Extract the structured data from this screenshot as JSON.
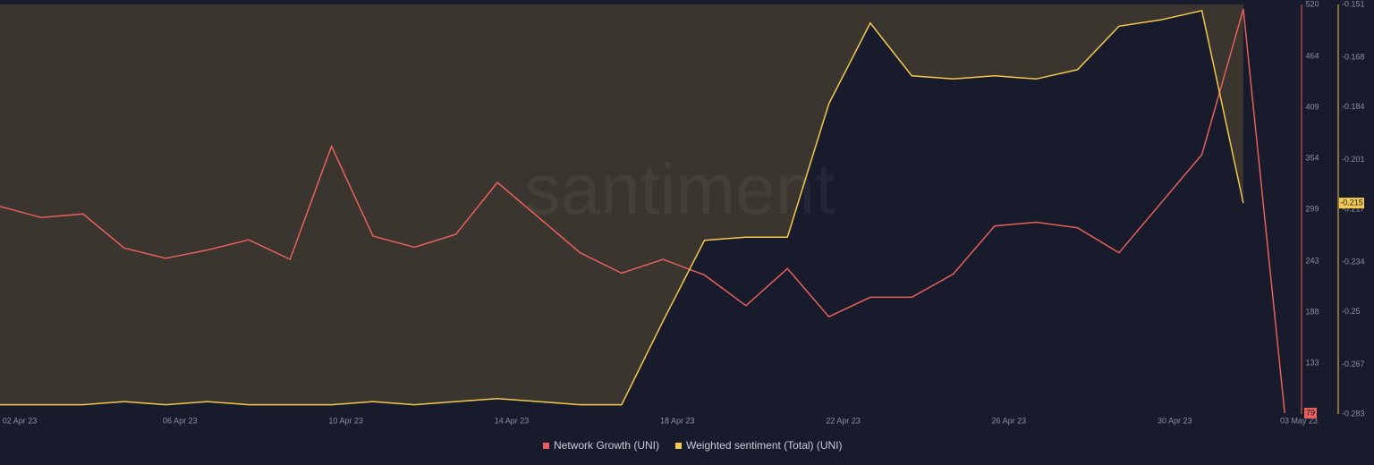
{
  "chart_data": {
    "type": "line",
    "watermark": "santiment",
    "categories": [
      "02 Apr 23",
      null,
      null,
      null,
      "06 Apr 23",
      null,
      null,
      null,
      "10 Apr 23",
      null,
      null,
      null,
      "14 Apr 23",
      null,
      null,
      null,
      "18 Apr 23",
      null,
      null,
      null,
      "22 Apr 23",
      null,
      null,
      null,
      "26 Apr 23",
      null,
      null,
      null,
      "30 Apr 23",
      null,
      null,
      "03 May 23"
    ],
    "series": [
      {
        "name": "Network Growth (UNI)",
        "color": "#e8605a",
        "axis": "y",
        "values": [
          302,
          290,
          294,
          257,
          246,
          255,
          266,
          245,
          367,
          270,
          258,
          272,
          328,
          290,
          252,
          230,
          245,
          228,
          195,
          235,
          183,
          204,
          204,
          229,
          281,
          285,
          279,
          252,
          305,
          358,
          515,
          79
        ]
      },
      {
        "name": "Weighted sentiment (Total) (UNI)",
        "color": "#f2c94c",
        "axis": "y2",
        "values": [
          -0.28,
          -0.28,
          -0.28,
          -0.279,
          -0.28,
          -0.279,
          -0.28,
          -0.28,
          -0.28,
          -0.279,
          -0.28,
          -0.279,
          -0.278,
          -0.279,
          -0.28,
          -0.28,
          -0.253,
          -0.227,
          -0.226,
          -0.226,
          -0.183,
          -0.157,
          -0.174,
          -0.175,
          -0.174,
          -0.175,
          -0.172,
          -0.158,
          -0.156,
          -0.153,
          -0.215,
          null
        ]
      }
    ],
    "ylim": [
      78,
      520
    ],
    "yticks": [
      133,
      188,
      243,
      299,
      354,
      409,
      464,
      520
    ],
    "y2lim": [
      -0.283,
      -0.151
    ],
    "y2ticks": [
      -0.283,
      -0.267,
      -0.25,
      -0.234,
      -0.217,
      -0.201,
      -0.184,
      -0.168,
      -0.151
    ],
    "legend": "bottom"
  }
}
